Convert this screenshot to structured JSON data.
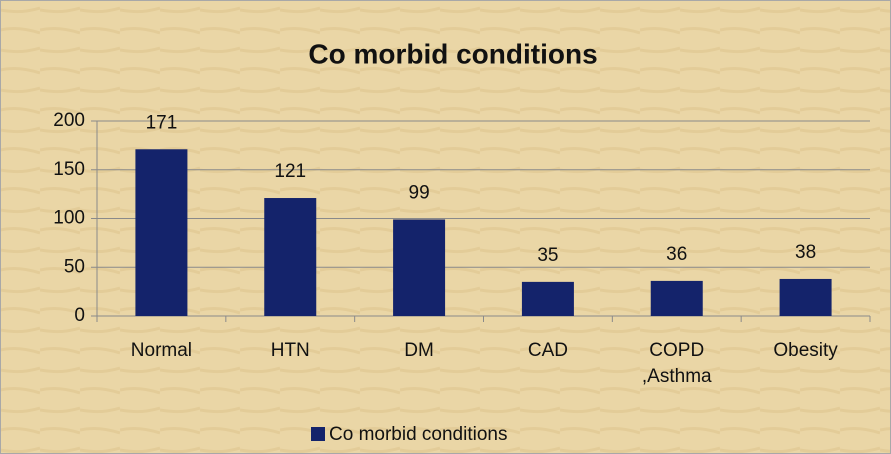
{
  "chart_data": {
    "type": "bar",
    "title": "Co morbid conditions",
    "categories": [
      "Normal",
      "HTN",
      "DM",
      "CAD",
      "COPD ,Asthma",
      "Obesity"
    ],
    "series": [
      {
        "name": "Co morbid conditions",
        "color": "#14236b",
        "values": [
          171,
          121,
          99,
          35,
          36,
          38
        ]
      }
    ],
    "ylim": [
      0,
      200
    ],
    "yticks": [
      0,
      50,
      100,
      150,
      200
    ],
    "grid": true,
    "legend": "bottom"
  }
}
